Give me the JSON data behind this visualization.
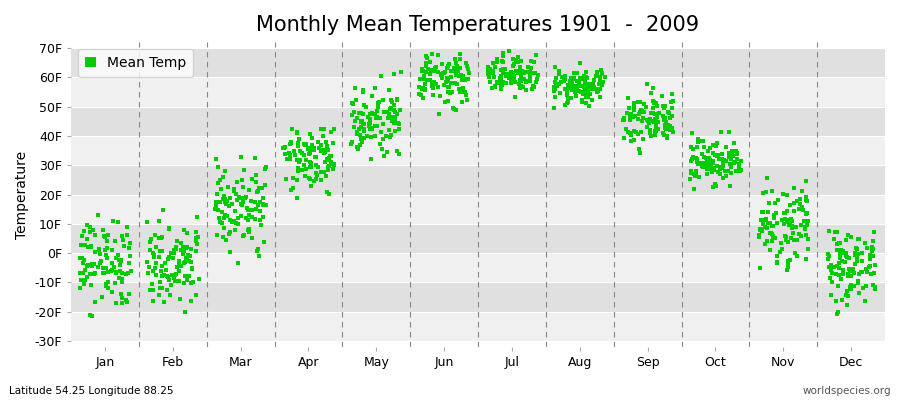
{
  "title": "Monthly Mean Temperatures 1901  -  2009",
  "ylabel": "Temperature",
  "xlabel_labels": [
    "Jan",
    "Feb",
    "Mar",
    "Apr",
    "May",
    "Jun",
    "Jul",
    "Aug",
    "Sep",
    "Oct",
    "Nov",
    "Dec"
  ],
  "ytick_labels": [
    "-30F",
    "-20F",
    "-10F",
    "0F",
    "10F",
    "20F",
    "30F",
    "40F",
    "50F",
    "60F",
    "70F"
  ],
  "ytick_values": [
    -30,
    -20,
    -10,
    0,
    10,
    20,
    30,
    40,
    50,
    60,
    70
  ],
  "ylim": [
    -32,
    72
  ],
  "legend_label": "Mean Temp",
  "dot_color": "#00cc00",
  "bg_color": "#ffffff",
  "stripe_light": "#f0f0f0",
  "stripe_dark": "#e0e0e0",
  "title_fontsize": 15,
  "axis_fontsize": 10,
  "tick_fontsize": 9,
  "footer_left": "Latitude 54.25 Longitude 88.25",
  "footer_right": "worldspecies.org",
  "monthly_means": [
    -4,
    -3,
    16,
    32,
    45,
    59,
    61,
    57,
    46,
    31,
    10,
    -4
  ],
  "monthly_stds": [
    7,
    7,
    7,
    5,
    6,
    4,
    3,
    3,
    4,
    4,
    7,
    7
  ],
  "n_years": 109
}
